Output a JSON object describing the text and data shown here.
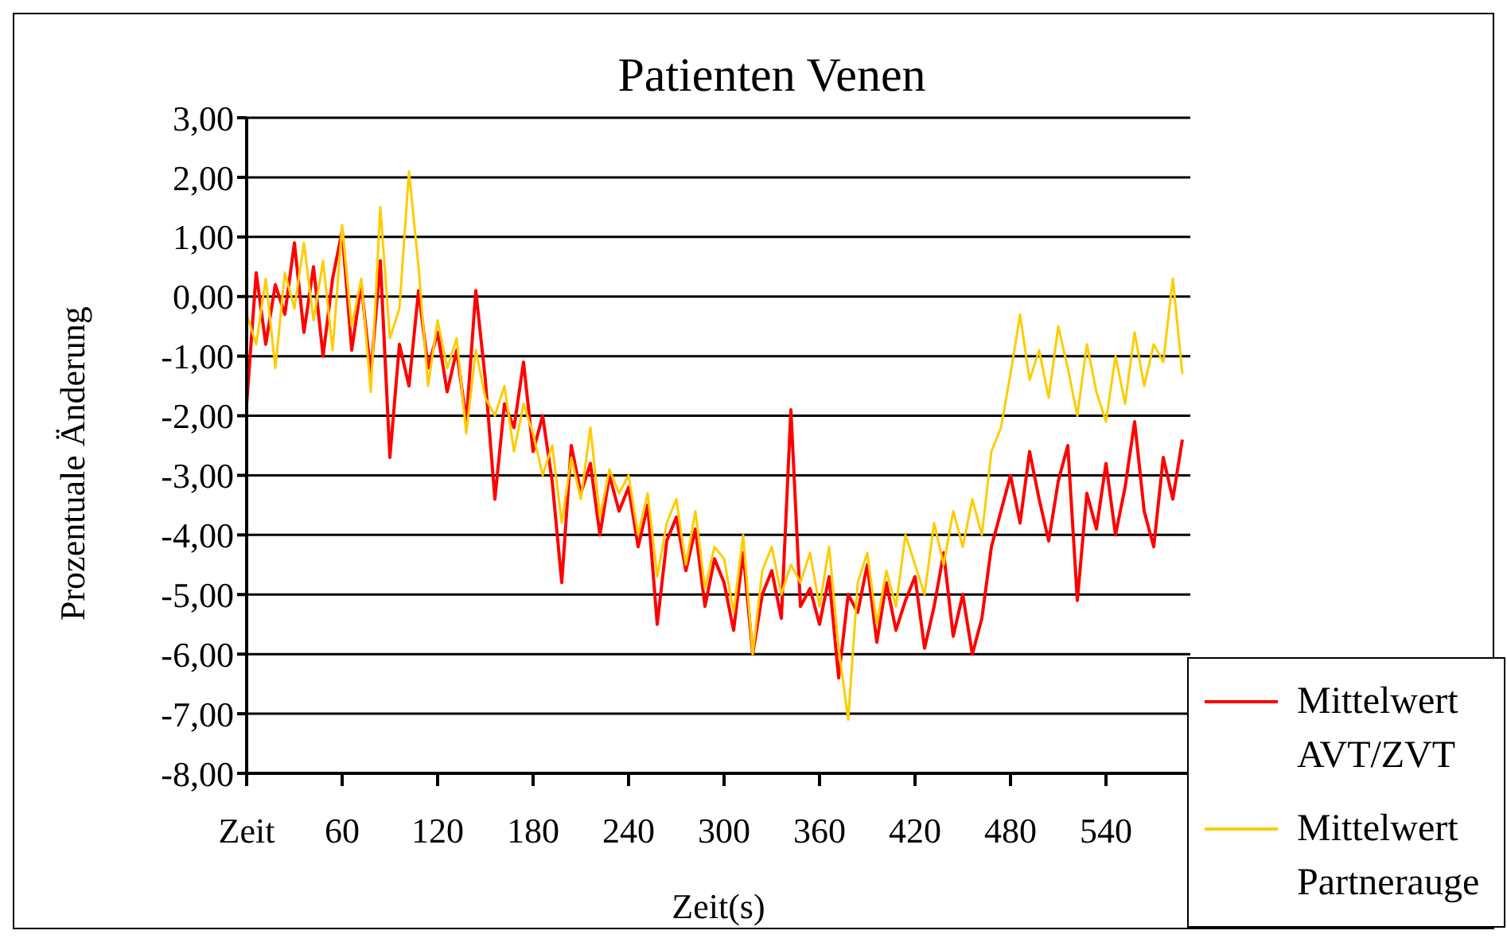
{
  "chart_data": {
    "type": "line",
    "title": "Patienten Venen",
    "xlabel": "Zeit(s)",
    "ylabel": "Prozentuale Änderung",
    "x": [
      0,
      6,
      12,
      18,
      24,
      30,
      36,
      42,
      48,
      54,
      60,
      66,
      72,
      78,
      84,
      90,
      96,
      102,
      108,
      114,
      120,
      126,
      132,
      138,
      144,
      150,
      156,
      162,
      168,
      174,
      180,
      186,
      192,
      198,
      204,
      210,
      216,
      222,
      228,
      234,
      240,
      246,
      252,
      258,
      264,
      270,
      276,
      282,
      288,
      294,
      300,
      306,
      312,
      318,
      324,
      330,
      336,
      342,
      348,
      354,
      360,
      366,
      372,
      378,
      384,
      390,
      396,
      402,
      408,
      414,
      420,
      426,
      432,
      438,
      444,
      450,
      456,
      462,
      468,
      474,
      480,
      486,
      492,
      498,
      504,
      510,
      516,
      522,
      528,
      534,
      540,
      546,
      552,
      558,
      564,
      570,
      576,
      582,
      588
    ],
    "series": [
      {
        "name": "Mittelwert AVT/ZVT",
        "color": "#ff0000",
        "values": [
          -1.8,
          0.4,
          -0.8,
          0.2,
          -0.3,
          0.9,
          -0.6,
          0.5,
          -1.0,
          0.3,
          1.1,
          -0.9,
          0.2,
          -1.3,
          0.6,
          -2.7,
          -0.8,
          -1.5,
          0.1,
          -1.2,
          -0.6,
          -1.6,
          -0.9,
          -2.1,
          0.1,
          -1.4,
          -3.4,
          -1.8,
          -2.2,
          -1.1,
          -2.6,
          -2.0,
          -3.1,
          -4.8,
          -2.5,
          -3.3,
          -2.8,
          -4.0,
          -3.0,
          -3.6,
          -3.2,
          -4.2,
          -3.5,
          -5.5,
          -4.1,
          -3.7,
          -4.6,
          -3.9,
          -5.2,
          -4.4,
          -4.8,
          -5.6,
          -4.3,
          -6.0,
          -5.0,
          -4.6,
          -5.4,
          -1.9,
          -5.2,
          -4.9,
          -5.5,
          -4.7,
          -6.4,
          -5.0,
          -5.3,
          -4.5,
          -5.8,
          -4.8,
          -5.6,
          -5.1,
          -4.7,
          -5.9,
          -5.2,
          -4.3,
          -5.7,
          -5.0,
          -6.0,
          -5.4,
          -4.2,
          -3.6,
          -3.0,
          -3.8,
          -2.6,
          -3.4,
          -4.1,
          -3.1,
          -2.5,
          -5.1,
          -3.3,
          -3.9,
          -2.8,
          -4.0,
          -3.2,
          -2.1,
          -3.6,
          -4.2,
          -2.7,
          -3.4,
          -2.4
        ]
      },
      {
        "name": "Mittelwert Partnerauge",
        "color": "#ffcc00",
        "values": [
          -0.3,
          -0.8,
          0.3,
          -1.2,
          0.4,
          -0.2,
          0.9,
          -0.4,
          0.6,
          -0.9,
          1.2,
          -0.5,
          0.3,
          -1.6,
          1.5,
          -0.7,
          -0.2,
          2.1,
          0.5,
          -1.5,
          -0.4,
          -1.2,
          -0.7,
          -2.3,
          -0.9,
          -1.7,
          -2.0,
          -1.5,
          -2.6,
          -1.8,
          -2.3,
          -3.0,
          -2.5,
          -3.8,
          -2.7,
          -3.4,
          -2.2,
          -3.7,
          -2.9,
          -3.3,
          -3.0,
          -4.0,
          -3.3,
          -4.7,
          -3.8,
          -3.4,
          -4.5,
          -3.6,
          -4.9,
          -4.2,
          -4.4,
          -5.3,
          -4.0,
          -6.0,
          -4.6,
          -4.2,
          -5.0,
          -4.5,
          -4.8,
          -4.3,
          -5.2,
          -4.2,
          -5.9,
          -7.1,
          -4.8,
          -4.3,
          -5.5,
          -4.6,
          -5.2,
          -4.0,
          -4.5,
          -5.0,
          -3.8,
          -4.5,
          -3.6,
          -4.2,
          -3.4,
          -4.0,
          -2.6,
          -2.2,
          -1.3,
          -0.3,
          -1.4,
          -0.9,
          -1.7,
          -0.5,
          -1.2,
          -2.0,
          -0.8,
          -1.6,
          -2.1,
          -1.0,
          -1.8,
          -0.6,
          -1.5,
          -0.8,
          -1.1,
          0.3,
          -1.3
        ]
      }
    ],
    "xlim": [
      0,
      593
    ],
    "xticks": [
      {
        "value": 0,
        "label": "Zeit"
      },
      60,
      120,
      180,
      240,
      300,
      360,
      420,
      480,
      540
    ],
    "ylim": [
      -8,
      3
    ],
    "yticks": [
      {
        "value": 3,
        "label": "3,00"
      },
      {
        "value": 2,
        "label": "2,00"
      },
      {
        "value": 1,
        "label": "1,00"
      },
      {
        "value": 0,
        "label": "0,00"
      },
      {
        "value": -1,
        "label": "-1,00"
      },
      {
        "value": -2,
        "label": "-2,00"
      },
      {
        "value": -3,
        "label": "-3,00"
      },
      {
        "value": -4,
        "label": "-4,00"
      },
      {
        "value": -5,
        "label": "-5,00"
      },
      {
        "value": -6,
        "label": "-6,00"
      },
      {
        "value": -7,
        "label": "-7,00"
      },
      {
        "value": -8,
        "label": "-8,00"
      }
    ],
    "grid": "y",
    "legend": "bottom right",
    "marker": "none",
    "line_style": "solid"
  }
}
